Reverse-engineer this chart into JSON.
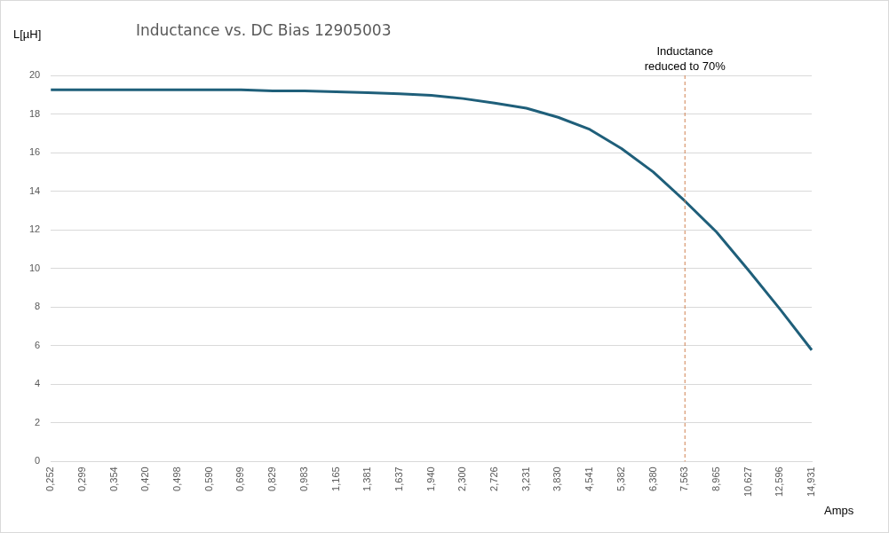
{
  "chart_data": {
    "type": "line",
    "title": "Inductance vs. DC Bias 12905003",
    "ylabel": "L[µH]",
    "xlabel": "Amps",
    "categories": [
      "0,252",
      "0,299",
      "0,354",
      "0,420",
      "0,498",
      "0,590",
      "0,699",
      "0,829",
      "0,983",
      "1,165",
      "1,381",
      "1,637",
      "1,940",
      "2,300",
      "2,726",
      "3,231",
      "3,830",
      "4,541",
      "5,382",
      "6,380",
      "7,563",
      "8,965",
      "10,627",
      "12,596",
      "14,931"
    ],
    "series": [
      {
        "color": "#1f5f7a",
        "values": [
          19.25,
          19.25,
          19.25,
          19.25,
          19.25,
          19.25,
          19.25,
          19.2,
          19.2,
          19.15,
          19.1,
          19.05,
          18.97,
          18.8,
          18.56,
          18.3,
          17.83,
          17.2,
          16.21,
          15.0,
          13.49,
          11.88,
          9.92,
          7.89,
          5.77
        ]
      }
    ],
    "ylim": [
      0,
      20
    ],
    "yticks": [
      0,
      2,
      4,
      6,
      8,
      10,
      12,
      14,
      16,
      18,
      20
    ],
    "grid": "y",
    "legend": false,
    "marker": "none",
    "line_style": "solid",
    "ref_lines": [
      {
        "axis": "x",
        "value": "7,563",
        "label": "Inductance reduced to 70%",
        "color": "#d08050",
        "line_style": "dashed"
      }
    ]
  }
}
